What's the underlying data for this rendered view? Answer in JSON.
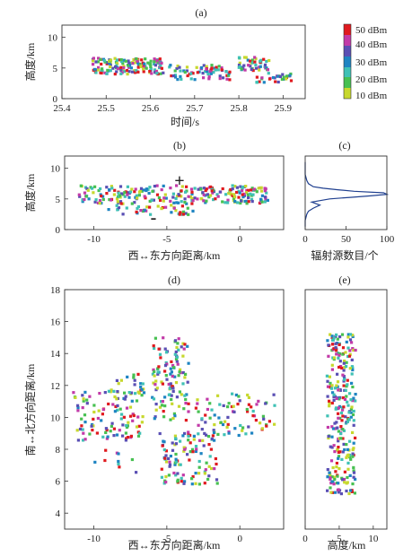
{
  "chart_data": [
    {
      "id": "a",
      "title": "(a)",
      "type": "scatter",
      "xlabel": "时间/s",
      "ylabel": "高度/km",
      "xlim": [
        25.4,
        25.95
      ],
      "ylim": [
        0,
        12
      ],
      "xticks": [
        "25.4",
        "25.5",
        "25.6",
        "25.7",
        "25.8",
        "25.9"
      ],
      "yticks": [
        "0",
        "5",
        "10"
      ],
      "clusters": [
        {
          "x": [
            25.47,
            25.63
          ],
          "y": [
            4.0,
            6.6
          ],
          "n": 160
        },
        {
          "x": [
            25.64,
            25.78
          ],
          "y": [
            3.0,
            5.5
          ],
          "n": 70
        },
        {
          "x": [
            25.8,
            25.87
          ],
          "y": [
            4.6,
            6.8
          ],
          "n": 45
        },
        {
          "x": [
            25.84,
            25.92
          ],
          "y": [
            2.6,
            4.2
          ],
          "n": 30
        }
      ]
    },
    {
      "id": "b",
      "title": "(b)",
      "type": "scatter",
      "xlabel": "西↔东方向距离/km",
      "ylabel": "高度/km",
      "xlim": [
        -12,
        3
      ],
      "ylim": [
        0,
        12
      ],
      "xticks": [
        "-10",
        "-5",
        "0"
      ],
      "yticks": [
        "0",
        "5",
        "10"
      ],
      "annotations": [
        "+",
        "-"
      ],
      "clusters": [
        {
          "x": [
            -11,
            2
          ],
          "y": [
            4.2,
            7.2
          ],
          "n": 260
        },
        {
          "x": [
            -9,
            -3
          ],
          "y": [
            2.4,
            4.0
          ],
          "n": 40
        }
      ]
    },
    {
      "id": "c",
      "title": "(c)",
      "type": "line",
      "xlabel": "辐射源数目/个",
      "xlim": [
        0,
        100
      ],
      "ylim": [
        0,
        12
      ],
      "xticks": [
        "0",
        "50",
        "100"
      ],
      "y": [
        0.5,
        1,
        1.5,
        2,
        2.5,
        3,
        3.5,
        4,
        4.5,
        5,
        5.25,
        5.5,
        5.75,
        6,
        6.25,
        6.5,
        6.75,
        7,
        7.5,
        8,
        8.5,
        9,
        10,
        11
      ],
      "x": [
        0,
        0,
        0,
        1,
        2,
        4,
        10,
        18,
        8,
        30,
        55,
        80,
        100,
        96,
        60,
        40,
        22,
        10,
        4,
        2,
        1,
        0,
        0,
        0
      ]
    },
    {
      "id": "d",
      "title": "(d)",
      "type": "scatter",
      "xlabel": "西↔东方向距离/km",
      "ylabel": "南↔北方向距离/km",
      "xlim": [
        -12,
        3
      ],
      "ylim": [
        3,
        18
      ],
      "xticks": [
        "-10",
        "-5",
        "0"
      ],
      "yticks": [
        "4",
        "6",
        "8",
        "10",
        "12",
        "14",
        "16",
        "18"
      ],
      "clusters": [
        {
          "x": [
            -11.5,
            -6.5
          ],
          "y": [
            8.5,
            11.8
          ],
          "n": 110
        },
        {
          "x": [
            -6,
            -3.5
          ],
          "y": [
            9.8,
            15
          ],
          "n": 120
        },
        {
          "x": [
            -5.5,
            -1.5
          ],
          "y": [
            5.8,
            9.2
          ],
          "n": 110
        },
        {
          "x": [
            -3,
            2.5
          ],
          "y": [
            8.8,
            11.5
          ],
          "n": 80
        },
        {
          "x": [
            -8.5,
            -6.5
          ],
          "y": [
            11.5,
            12.8
          ],
          "n": 20
        },
        {
          "x": [
            -10,
            -7
          ],
          "y": [
            6.5,
            8
          ],
          "n": 10
        }
      ]
    },
    {
      "id": "e",
      "title": "(e)",
      "type": "scatter",
      "xlabel": "高度/km",
      "xlim": [
        0,
        12
      ],
      "ylim": [
        3,
        18
      ],
      "xticks": [
        "0",
        "5",
        "10"
      ],
      "clusters": [
        {
          "x": [
            3.2,
            7.4
          ],
          "y": [
            5.2,
            15.2
          ],
          "n": 280
        }
      ]
    }
  ],
  "colorbar": {
    "labels": [
      "50 dBm",
      "40 dBm",
      "30 dBm",
      "20 dBm",
      "10 dBm"
    ],
    "values": [
      50,
      40,
      30,
      20,
      10
    ],
    "colors": [
      "#e01a1f",
      "#c23aa8",
      "#5a4fb4",
      "#1e84c2",
      "#3fc1b5",
      "#47c051",
      "#c7d82e"
    ]
  }
}
